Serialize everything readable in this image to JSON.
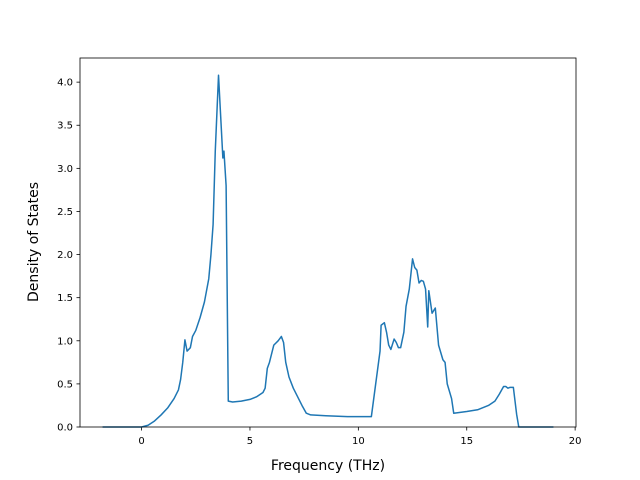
{
  "chart_data": {
    "type": "line",
    "xlabel": "Frequency (THz)",
    "ylabel": "Density of States",
    "x": [
      -1.8,
      0,
      0.3,
      0.6,
      0.9,
      1.2,
      1.5,
      1.7,
      1.8,
      1.9,
      2.0,
      2.1,
      2.25,
      2.35,
      2.5,
      2.7,
      2.9,
      3.1,
      3.2,
      3.3,
      3.4,
      3.55,
      3.65,
      3.75,
      3.8,
      3.9,
      4.0,
      4.2,
      4.6,
      5.0,
      5.3,
      5.6,
      5.7,
      5.8,
      5.9,
      6.1,
      6.3,
      6.45,
      6.55,
      6.65,
      6.8,
      7.0,
      7.2,
      7.4,
      7.6,
      7.8,
      8.5,
      9.5,
      10.6,
      10.8,
      11.0,
      11.05,
      11.2,
      11.3,
      11.4,
      11.5,
      11.65,
      11.75,
      11.85,
      11.95,
      12.1,
      12.2,
      12.35,
      12.5,
      12.6,
      12.7,
      12.8,
      12.9,
      13.0,
      13.1,
      13.2,
      13.25,
      13.4,
      13.55,
      13.7,
      13.9,
      14.0,
      14.1,
      14.3,
      14.4,
      15.0,
      15.5,
      16.0,
      16.3,
      16.5,
      16.7,
      16.8,
      16.9,
      17.0,
      17.15,
      17.3,
      17.4,
      19.0
    ],
    "series": [
      {
        "color": "#1f77b4",
        "values": [
          0,
          0,
          0.02,
          0.07,
          0.14,
          0.22,
          0.33,
          0.43,
          0.55,
          0.75,
          1.01,
          0.88,
          0.92,
          1.05,
          1.12,
          1.27,
          1.45,
          1.72,
          2.0,
          2.35,
          3.2,
          4.08,
          3.6,
          3.12,
          3.2,
          2.8,
          0.3,
          0.29,
          0.3,
          0.32,
          0.35,
          0.4,
          0.45,
          0.68,
          0.75,
          0.95,
          1.0,
          1.05,
          0.98,
          0.75,
          0.58,
          0.45,
          0.35,
          0.25,
          0.16,
          0.14,
          0.13,
          0.12,
          0.12,
          0.5,
          0.88,
          1.18,
          1.21,
          1.1,
          0.95,
          0.9,
          1.02,
          0.98,
          0.92,
          0.92,
          1.1,
          1.4,
          1.6,
          1.95,
          1.85,
          1.82,
          1.67,
          1.7,
          1.69,
          1.6,
          1.16,
          1.58,
          1.32,
          1.38,
          0.95,
          0.78,
          0.75,
          0.5,
          0.33,
          0.16,
          0.18,
          0.2,
          0.25,
          0.3,
          0.38,
          0.47,
          0.47,
          0.45,
          0.46,
          0.46,
          0.15,
          0,
          0
        ]
      }
    ],
    "xlim": [
      -2.84,
      20.04
    ],
    "xticks": [
      0,
      5,
      10,
      15,
      20
    ],
    "ylim": [
      0,
      4.28
    ],
    "yticks": [
      {
        "value": 0,
        "label": "0.0"
      },
      {
        "value": 0.5,
        "label": "0.5"
      },
      {
        "value": 1,
        "label": "1.0"
      },
      {
        "value": 1.5,
        "label": "1.5"
      },
      {
        "value": 2,
        "label": "2.0"
      },
      {
        "value": 2.5,
        "label": "2.5"
      },
      {
        "value": 3,
        "label": "3.0"
      },
      {
        "value": 3.5,
        "label": "3.5"
      },
      {
        "value": 4,
        "label": "4.0"
      }
    ]
  }
}
